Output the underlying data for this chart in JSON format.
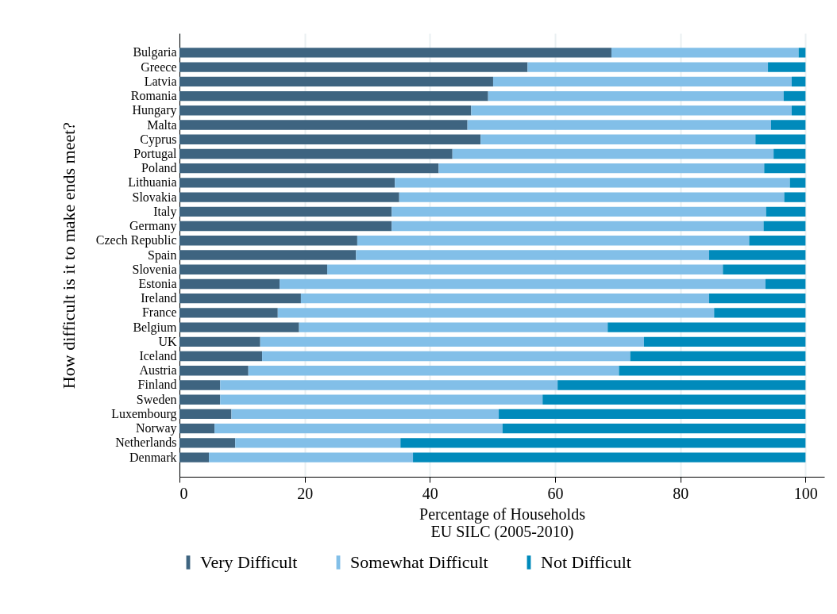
{
  "chart_data": {
    "type": "bar",
    "orientation": "horizontal",
    "stacked": true,
    "ylabel": "How difficult is it to make ends meet?",
    "xlabel": "Percentage of Households",
    "annotations": [
      "EU SILC (2005-2010)"
    ],
    "categories": [
      "Bulgaria",
      "Greece",
      "Latvia",
      "Romania",
      "Hungary",
      "Malta",
      "Cyprus",
      "Portugal",
      "Poland",
      "Lithuania",
      "Slovakia",
      "Italy",
      "Germany",
      "Czech Republic",
      "Spain",
      "Slovenia",
      "Estonia",
      "Ireland",
      "France",
      "Belgium",
      "UK",
      "Iceland",
      "Austria",
      "Finland",
      "Sweden",
      "Luxembourg",
      "Norway",
      "Netherlands",
      "Denmark"
    ],
    "series": [
      {
        "name": "Very Difficult",
        "color": "#3e6480",
        "values": [
          69.0,
          55.6,
          50.1,
          49.3,
          46.6,
          46.0,
          48.1,
          43.6,
          41.4,
          34.4,
          35.1,
          33.9,
          33.9,
          28.4,
          28.2,
          23.6,
          16.0,
          19.4,
          15.7,
          19.1,
          12.9,
          13.2,
          11.0,
          6.5,
          6.5,
          8.3,
          5.6,
          8.9,
          4.7
        ]
      },
      {
        "name": "Somewhat Difficult",
        "color": "#82bfe8",
        "values": [
          29.9,
          38.4,
          47.7,
          47.2,
          51.2,
          48.5,
          43.9,
          51.3,
          52.0,
          63.1,
          61.5,
          59.8,
          59.4,
          62.6,
          56.4,
          63.2,
          77.6,
          65.2,
          69.7,
          49.3,
          61.3,
          58.8,
          59.2,
          53.9,
          51.5,
          42.7,
          46.0,
          26.4,
          32.6
        ]
      },
      {
        "name": "Not Difficult",
        "color": "#008abb",
        "values": [
          1.1,
          6.0,
          2.2,
          3.5,
          2.2,
          5.5,
          8.0,
          5.1,
          6.6,
          2.5,
          3.4,
          6.3,
          6.7,
          9.0,
          15.4,
          13.2,
          6.4,
          15.4,
          14.6,
          31.6,
          25.8,
          28.0,
          29.8,
          39.6,
          42.0,
          49.0,
          48.4,
          64.7,
          62.7
        ]
      }
    ],
    "xlim": [
      0,
      103
    ],
    "xticks": [
      0,
      20,
      40,
      60,
      80,
      100
    ],
    "grid": "x",
    "legend": "bottom"
  }
}
